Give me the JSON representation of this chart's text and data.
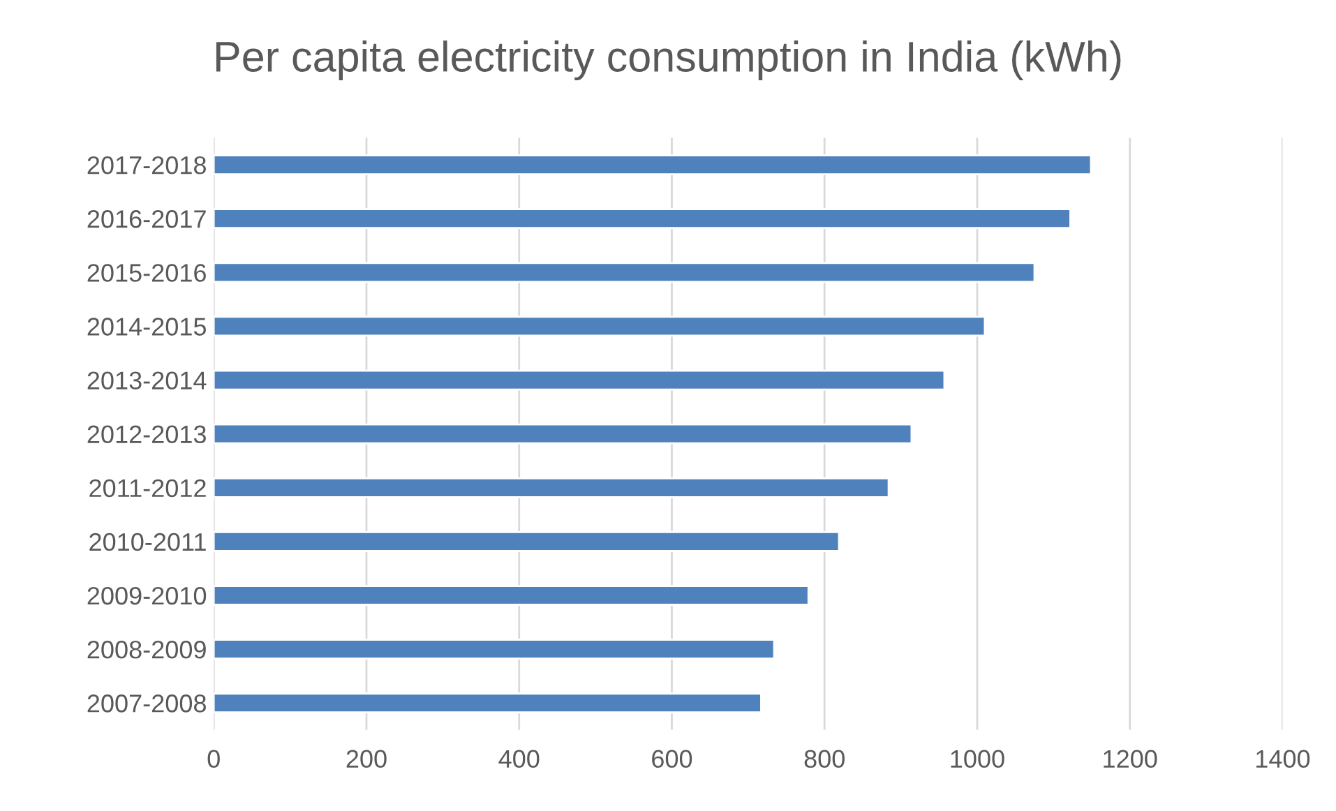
{
  "chart_data": {
    "type": "bar",
    "orientation": "horizontal",
    "title": "Per capita electricity consumption in India (kWh)",
    "categories": [
      "2017-2018",
      "2016-2017",
      "2015-2016",
      "2014-2015",
      "2013-2014",
      "2012-2013",
      "2011-2012",
      "2010-2011",
      "2009-2010",
      "2008-2009",
      "2007-2008"
    ],
    "values": [
      1149,
      1122,
      1075,
      1010,
      957,
      914,
      884,
      819,
      779,
      734,
      717
    ],
    "color": "#4f81bd",
    "xlim": [
      0,
      1400
    ],
    "xticks": [
      0,
      200,
      400,
      600,
      800,
      1000,
      1200,
      1400
    ],
    "grid": "x"
  }
}
